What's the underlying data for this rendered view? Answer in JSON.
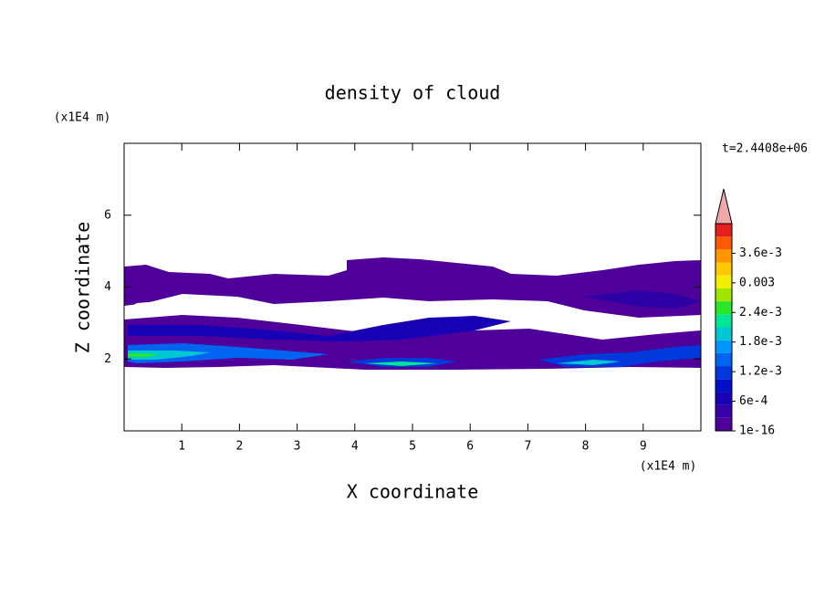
{
  "chart_data": {
    "type": "contour",
    "title": "density of cloud",
    "x_label": "X coordinate",
    "y_label": "Z coordinate",
    "x_unit": "(x1E4 m)",
    "y_unit": "(x1E4 m)",
    "time_label": "t=2.4408e+06",
    "xlim": [
      0,
      10
    ],
    "ylim": [
      0,
      8
    ],
    "xticks": [
      1,
      2,
      3,
      4,
      5,
      6,
      7,
      8,
      9
    ],
    "yticks": [
      2,
      4,
      6
    ],
    "colorbar": {
      "ticks": [
        {
          "value": 1e-16,
          "label": "1e-16"
        },
        {
          "value": 0.0006,
          "label": "6e-4"
        },
        {
          "value": 0.0012,
          "label": "1.2e-3"
        },
        {
          "value": 0.0018,
          "label": "1.8e-3"
        },
        {
          "value": 0.0024,
          "label": "2.4e-3"
        },
        0.003,
        {
          "value": 0.0036,
          "label": "3.6e-3"
        }
      ],
      "lim": [
        1e-16,
        0.0042
      ],
      "colors": [
        "#50009a",
        "#3a00a8",
        "#1800b4",
        "#0010c8",
        "#0038dc",
        "#0064f0",
        "#0096ff",
        "#00c8d2",
        "#00e696",
        "#28e628",
        "#a0e600",
        "#f0f000",
        "#ffc800",
        "#ff9600",
        "#ff5a00",
        "#e61e1e"
      ],
      "extend_color": "#f0a8a8"
    }
  }
}
